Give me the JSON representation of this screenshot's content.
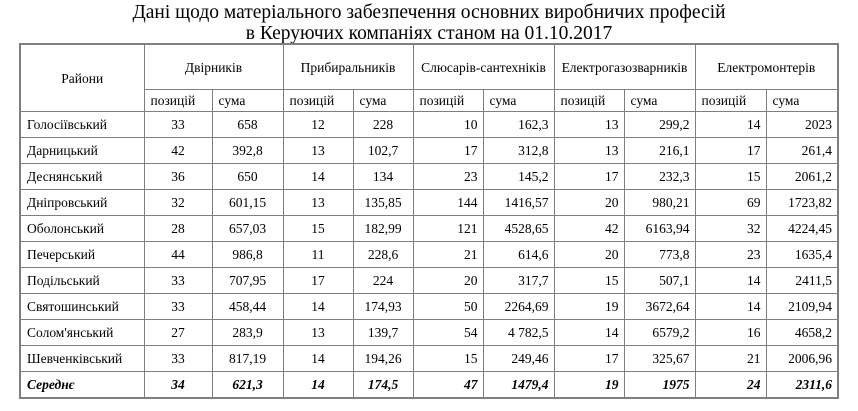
{
  "title": {
    "line1": "Дані щодо матеріального забезпечення основних виробничих професій",
    "line2": "в Керуючих компаніях станом на 01.10.2017"
  },
  "table": {
    "district_header": "Райони",
    "groups": [
      {
        "label": "Двірників",
        "sub": [
          "позицій",
          "сума"
        ]
      },
      {
        "label": "Прибиральників",
        "sub": [
          "позицій",
          "сума"
        ]
      },
      {
        "label": "Слюсарів-сантехніків",
        "sub": [
          "позицій",
          "сума"
        ]
      },
      {
        "label": "Електрогазозварників",
        "sub": [
          "позицій",
          "сума"
        ]
      },
      {
        "label": "Електромонтерів",
        "sub": [
          "позицій",
          "сума"
        ]
      }
    ],
    "rows": [
      {
        "district": "Голосіївський",
        "values": [
          "33",
          "658",
          "12",
          "228",
          "10",
          "162,3",
          "13",
          "299,2",
          "14",
          "2023"
        ]
      },
      {
        "district": "Дарницький",
        "values": [
          "42",
          "392,8",
          "13",
          "102,7",
          "17",
          "312,8",
          "13",
          "216,1",
          "17",
          "261,4"
        ]
      },
      {
        "district": "Деснянський",
        "values": [
          "36",
          "650",
          "14",
          "134",
          "23",
          "145,2",
          "17",
          "232,3",
          "15",
          "2061,2"
        ]
      },
      {
        "district": "Дніпровський",
        "values": [
          "32",
          "601,15",
          "13",
          "135,85",
          "144",
          "1416,57",
          "20",
          "980,21",
          "69",
          "1723,82"
        ]
      },
      {
        "district": "Оболонський",
        "values": [
          "28",
          "657,03",
          "15",
          "182,99",
          "121",
          "4528,65",
          "42",
          "6163,94",
          "32",
          "4224,45"
        ]
      },
      {
        "district": "Печерський",
        "values": [
          "44",
          "986,8",
          "11",
          "228,6",
          "21",
          "614,6",
          "20",
          "773,8",
          "23",
          "1635,4"
        ]
      },
      {
        "district": "Подільський",
        "values": [
          "33",
          "707,95",
          "17",
          "224",
          "20",
          "317,7",
          "15",
          "507,1",
          "14",
          "2411,5"
        ]
      },
      {
        "district": "Святошинський",
        "values": [
          "33",
          "458,44",
          "14",
          "174,93",
          "50",
          "2264,69",
          "19",
          "3672,64",
          "14",
          "2109,94"
        ]
      },
      {
        "district": "Солом'янський",
        "values": [
          "27",
          "283,9",
          "13",
          "139,7",
          "54",
          "4 782,5",
          "14",
          "6579,2",
          "16",
          "4658,2"
        ]
      },
      {
        "district": "Шевченківський",
        "values": [
          "33",
          "817,19",
          "14",
          "194,26",
          "15",
          "249,46",
          "17",
          "325,67",
          "21",
          "2006,96"
        ]
      }
    ],
    "average": {
      "district": "Середнє",
      "values": [
        "34",
        "621,3",
        "14",
        "174,5",
        "47",
        "1479,4",
        "19",
        "1975",
        "24",
        "2311,6"
      ]
    }
  }
}
